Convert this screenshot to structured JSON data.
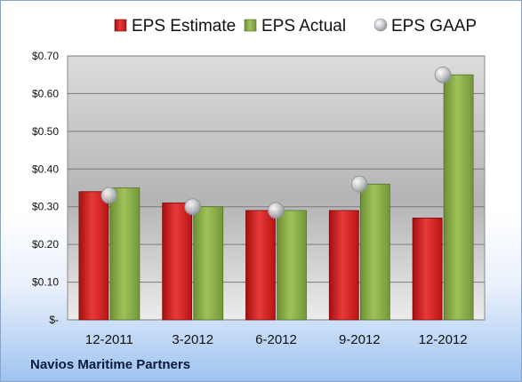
{
  "company": "Navios Maritime Partners",
  "chart_data": {
    "type": "bar",
    "categories": [
      "12-2011",
      "3-2012",
      "6-2012",
      "9-2012",
      "12-2012"
    ],
    "series": [
      {
        "name": "EPS Estimate",
        "type": "bar",
        "color": "#d42020",
        "values": [
          0.34,
          0.31,
          0.29,
          0.29,
          0.27
        ]
      },
      {
        "name": "EPS Actual",
        "type": "bar",
        "color": "#8db04a",
        "values": [
          0.35,
          0.3,
          0.29,
          0.36,
          0.65
        ]
      },
      {
        "name": "EPS GAAP",
        "type": "marker",
        "color": "#b8bcc2",
        "values": [
          0.33,
          0.3,
          0.29,
          0.36,
          0.65
        ]
      }
    ],
    "yticks": [
      {
        "value": 0.0,
        "label": "$-"
      },
      {
        "value": 0.1,
        "label": "$0.10"
      },
      {
        "value": 0.2,
        "label": "$0.20"
      },
      {
        "value": 0.3,
        "label": "$0.30"
      },
      {
        "value": 0.4,
        "label": "$0.40"
      },
      {
        "value": 0.5,
        "label": "$0.50"
      },
      {
        "value": 0.6,
        "label": "$0.60"
      },
      {
        "value": 0.7,
        "label": "$0.70"
      }
    ],
    "ylim": [
      0,
      0.7
    ],
    "grid": true,
    "legend_position": "top"
  }
}
